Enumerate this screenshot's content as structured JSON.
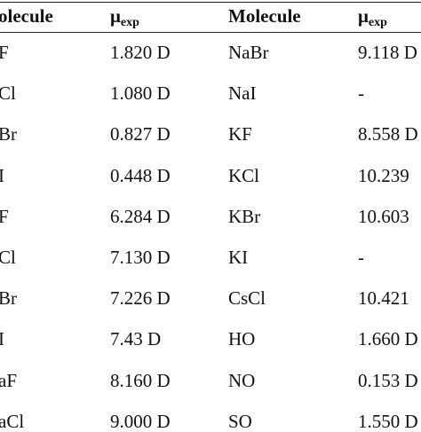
{
  "table": {
    "header": [
      {
        "text": "olecule"
      },
      {
        "symbol": "μ",
        "subscript": "exp"
      },
      {
        "text": "Molecule"
      },
      {
        "symbol": "μ",
        "subscript": "exp"
      }
    ],
    "rows": [
      [
        "F",
        "1.820 D",
        "NaBr",
        "9.118 D"
      ],
      [
        "Cl",
        "1.080 D",
        "NaI",
        "-"
      ],
      [
        "Br",
        "0.827 D",
        "KF",
        "8.558 D"
      ],
      [
        "I",
        "0.448 D",
        "KCl",
        "10.239"
      ],
      [
        "F",
        "6.284 D",
        "KBr",
        "10.603"
      ],
      [
        "Cl",
        "7.130 D",
        "KI",
        "-"
      ],
      [
        "Br",
        "7.226 D",
        "CsCl",
        "10.421"
      ],
      [
        "I",
        "7.43 D",
        "HO",
        "1.660 D"
      ],
      [
        "aF",
        "8.160 D",
        "NO",
        "0.153 D"
      ],
      [
        "aCl",
        "9.000 D",
        "SO",
        "1.550 D"
      ]
    ]
  }
}
